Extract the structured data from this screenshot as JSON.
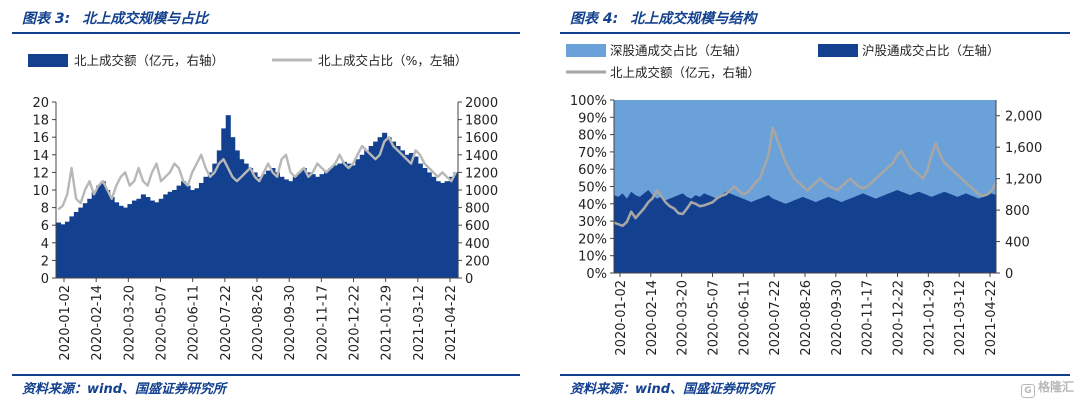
{
  "left": {
    "figure_number": "图表 3:",
    "figure_title": "北上成交规模与占比",
    "source": "资料来源：wind、国盛证券研究所",
    "colors": {
      "bar": "#13418f",
      "line": "#b8b8b8"
    },
    "chart_data": {
      "type": "bar",
      "x_tick_labels": [
        "2020-01-02",
        "2020-02-14",
        "2020-03-20",
        "2020-05-07",
        "2020-06-11",
        "2020-07-22",
        "2020-08-26",
        "2020-09-30",
        "2020-11-17",
        "2020-12-22",
        "2021-01-29",
        "2021-03-12",
        "2021-04-22"
      ],
      "y_left": {
        "ticks": [
          0,
          2,
          4,
          6,
          8,
          10,
          12,
          14,
          16,
          18,
          20
        ],
        "range": [
          0,
          20
        ]
      },
      "y_right": {
        "ticks": [
          0,
          200,
          400,
          600,
          800,
          1000,
          1200,
          1400,
          1600,
          1800,
          2000
        ],
        "range": [
          0,
          2000
        ]
      },
      "grid": false,
      "legend_position": "top",
      "series": [
        {
          "name": "北上成交额（亿元，右轴）",
          "kind": "bar",
          "axis": "right",
          "values": [
            630,
            610,
            640,
            700,
            750,
            800,
            850,
            900,
            980,
            1050,
            1100,
            1000,
            920,
            860,
            820,
            800,
            840,
            880,
            900,
            950,
            920,
            880,
            860,
            900,
            950,
            980,
            1000,
            1050,
            1100,
            1050,
            1000,
            1020,
            1080,
            1150,
            1200,
            1300,
            1450,
            1700,
            1850,
            1600,
            1450,
            1350,
            1300,
            1250,
            1200,
            1150,
            1180,
            1220,
            1250,
            1200,
            1150,
            1120,
            1100,
            1150,
            1200,
            1250,
            1200,
            1180,
            1150,
            1180,
            1220,
            1250,
            1280,
            1300,
            1320,
            1300,
            1280,
            1350,
            1400,
            1450,
            1500,
            1550,
            1600,
            1650,
            1600,
            1550,
            1500,
            1450,
            1400,
            1420,
            1380,
            1300,
            1250,
            1200,
            1150,
            1100,
            1080,
            1100,
            1150,
            1200
          ]
        },
        {
          "name": "北上成交占比（%，左轴）",
          "kind": "line",
          "axis": "left",
          "values": [
            7.8,
            8.2,
            9.5,
            12.5,
            9,
            8.5,
            10,
            11,
            9.5,
            10.5,
            11,
            10,
            9,
            10.5,
            11.5,
            12,
            10.5,
            11,
            12.5,
            11,
            10.5,
            12,
            13,
            11,
            11.5,
            12,
            13,
            12.5,
            11,
            10.5,
            12,
            13,
            14,
            12.5,
            11.5,
            12,
            13,
            13.5,
            12.5,
            11.5,
            11,
            11.5,
            12,
            12.5,
            11.5,
            11,
            12,
            13,
            12,
            11.5,
            13.5,
            14,
            12,
            11.5,
            12,
            12.5,
            11.5,
            12,
            13,
            12.5,
            12,
            12.5,
            13,
            14,
            13,
            12.5,
            13,
            14,
            15,
            14.5,
            14,
            13.5,
            14,
            15.5,
            16,
            15,
            14.5,
            14,
            13.5,
            13,
            14.5,
            14,
            13,
            12.5,
            12,
            11.5,
            12,
            11.5,
            11,
            12
          ]
        }
      ]
    }
  },
  "right": {
    "figure_number": "图表 4:",
    "figure_title": "北上成交规模与结构",
    "source": "资料来源：wind、国盛证券研究所",
    "colors": {
      "sh": "#13418f",
      "sz": "#6aa1d8",
      "line": "#a6a6a6"
    },
    "chart_data": {
      "type": "area",
      "x_tick_labels": [
        "2020-01-02",
        "2020-02-14",
        "2020-03-20",
        "2020-05-07",
        "2020-06-11",
        "2020-07-22",
        "2020-08-26",
        "2020-09-30",
        "2020-11-17",
        "2020-12-22",
        "2021-01-29",
        "2021-03-12",
        "2021-04-22"
      ],
      "y_left": {
        "ticks": [
          "0%",
          "10%",
          "20%",
          "30%",
          "40%",
          "50%",
          "60%",
          "70%",
          "80%",
          "90%",
          "100%"
        ],
        "range": [
          0,
          100
        ]
      },
      "y_right": {
        "ticks": [
          "0",
          "400",
          "800",
          "1,200",
          "1,600",
          "2,000"
        ],
        "range": [
          0,
          2200
        ]
      },
      "grid": false,
      "legend_position": "top",
      "series": [
        {
          "name": "深股通成交占比（左轴）",
          "kind": "area-top",
          "axis": "left"
        },
        {
          "name": "沪股通成交占比（左轴）",
          "kind": "area",
          "axis": "left",
          "values": [
            45,
            44,
            46,
            43,
            47,
            45,
            44,
            46,
            48,
            45,
            43,
            44,
            42,
            43,
            44,
            45,
            46,
            44,
            43,
            45,
            44,
            46,
            45,
            44,
            43,
            45,
            47,
            46,
            45,
            44,
            43,
            42,
            41,
            42,
            43,
            44,
            45,
            43,
            42,
            41,
            40,
            41,
            42,
            43,
            44,
            43,
            42,
            41,
            42,
            43,
            44,
            43,
            42,
            41,
            42,
            43,
            44,
            45,
            46,
            45,
            44,
            43,
            44,
            45,
            46,
            47,
            48,
            47,
            46,
            45,
            46,
            47,
            46,
            45,
            44,
            45,
            46,
            47,
            46,
            45,
            44,
            45,
            46,
            45,
            44,
            43,
            44,
            45,
            46,
            45
          ]
        },
        {
          "name": "北上成交额（亿元，右轴）",
          "kind": "line",
          "axis": "right",
          "values": [
            640,
            620,
            600,
            650,
            780,
            700,
            760,
            820,
            900,
            950,
            1050,
            980,
            900,
            850,
            820,
            760,
            750,
            820,
            900,
            880,
            850,
            860,
            880,
            900,
            950,
            980,
            1000,
            1050,
            1100,
            1050,
            1000,
            1020,
            1080,
            1150,
            1200,
            1350,
            1500,
            1850,
            1700,
            1550,
            1400,
            1300,
            1200,
            1150,
            1100,
            1050,
            1100,
            1150,
            1200,
            1150,
            1100,
            1080,
            1050,
            1100,
            1150,
            1200,
            1150,
            1100,
            1080,
            1100,
            1150,
            1200,
            1250,
            1300,
            1350,
            1400,
            1500,
            1550,
            1450,
            1350,
            1300,
            1250,
            1200,
            1300,
            1500,
            1650,
            1500,
            1400,
            1350,
            1300,
            1250,
            1200,
            1150,
            1100,
            1050,
            1000,
            980,
            1000,
            1050,
            1150
          ]
        }
      ]
    }
  }
}
